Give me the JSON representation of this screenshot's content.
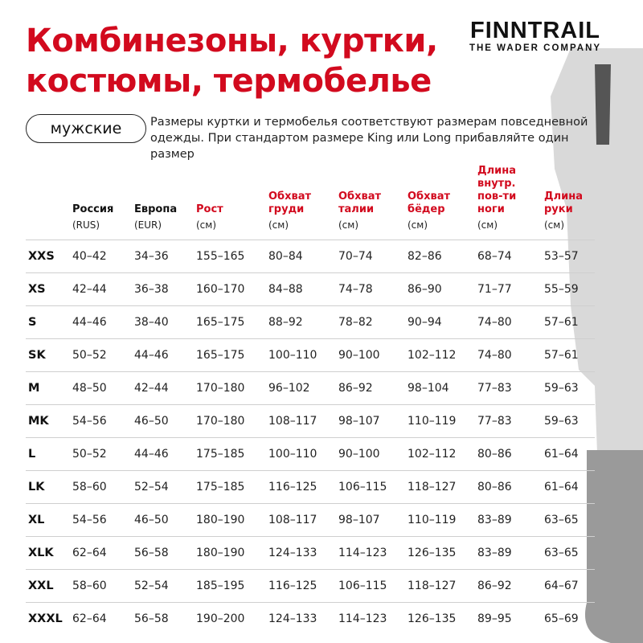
{
  "title_lines": [
    "Комбинезоны, куртки,",
    "костюмы, термобелье"
  ],
  "logo": {
    "main": "FINNTRAIL",
    "sub": "THE WADER COMPANY"
  },
  "category_pill": "мужские",
  "note_lines": [
    "Размеры куртки и термобелья соответствуют размерам повседневной",
    "одежды. При стандартом размере King или Long прибавляйте один размер"
  ],
  "colors": {
    "accent": "#d20a1e",
    "text": "#111111"
  },
  "columns": [
    {
      "label": "",
      "unit": "",
      "color": "black"
    },
    {
      "label": "Россия",
      "unit": "(RUS)",
      "color": "black"
    },
    {
      "label": "Европа",
      "unit": "(EUR)",
      "color": "black"
    },
    {
      "label": "Рост",
      "unit": "(см)",
      "color": "red"
    },
    {
      "label": "Обхват груди",
      "unit": "(см)",
      "color": "red"
    },
    {
      "label": "Обхват талии",
      "unit": "(см)",
      "color": "red"
    },
    {
      "label": "Обхват бёдер",
      "unit": "(см)",
      "color": "red"
    },
    {
      "label": "Длина внутр. пов-ти ноги",
      "unit": "(см)",
      "color": "red"
    },
    {
      "label": "Длина руки",
      "unit": "(см)",
      "color": "red"
    }
  ],
  "rows": [
    [
      "XXS",
      "40–42",
      "34–36",
      "155–165",
      "80–84",
      "70–74",
      "82–86",
      "68–74",
      "53–57"
    ],
    [
      "XS",
      "42–44",
      "36–38",
      "160–170",
      "84–88",
      "74–78",
      "86–90",
      "71–77",
      "55–59"
    ],
    [
      "S",
      "44–46",
      "38–40",
      "165–175",
      "88–92",
      "78–82",
      "90–94",
      "74–80",
      "57–61"
    ],
    [
      "SK",
      "50–52",
      "44–46",
      "165–175",
      "100–110",
      "90–100",
      "102–112",
      "74–80",
      "57–61"
    ],
    [
      "M",
      "48–50",
      "42–44",
      "170–180",
      "96–102",
      "86–92",
      "98–104",
      "77–83",
      "59–63"
    ],
    [
      "MK",
      "54–56",
      "46–50",
      "170–180",
      "108–117",
      "98–107",
      "110–119",
      "77–83",
      "59–63"
    ],
    [
      "L",
      "50–52",
      "44–46",
      "175–185",
      "100–110",
      "90–100",
      "102–112",
      "80–86",
      "61–64"
    ],
    [
      "LK",
      "58–60",
      "52–54",
      "175–185",
      "116–125",
      "106–115",
      "118–127",
      "80–86",
      "61–64"
    ],
    [
      "XL",
      "54–56",
      "46–50",
      "180–190",
      "108–117",
      "98–107",
      "110–119",
      "83–89",
      "63–65"
    ],
    [
      "XLK",
      "62–64",
      "56–58",
      "180–190",
      "124–133",
      "114–123",
      "126–135",
      "83–89",
      "63–65"
    ],
    [
      "XXL",
      "58–60",
      "52–54",
      "185–195",
      "116–125",
      "106–115",
      "118–127",
      "86–92",
      "64–67"
    ],
    [
      "XXXL",
      "62–64",
      "56–58",
      "190–200",
      "124–133",
      "114–123",
      "126–135",
      "89–95",
      "65–69"
    ]
  ]
}
